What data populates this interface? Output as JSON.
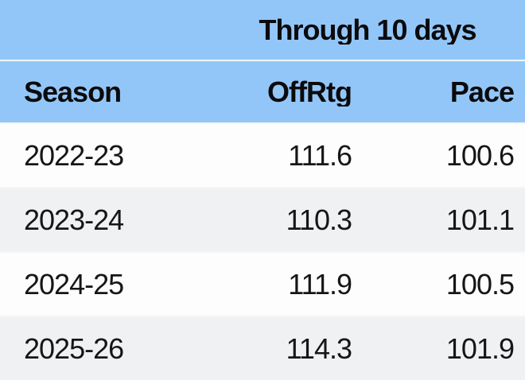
{
  "chart_data": {
    "type": "table",
    "title": "Through 10 days",
    "columns": [
      "Season",
      "OffRtg",
      "Pace"
    ],
    "rows": [
      [
        "2022-23",
        "111.6",
        "100.6"
      ],
      [
        "2023-24",
        "110.3",
        "101.1"
      ],
      [
        "2024-25",
        "111.9",
        "100.5"
      ],
      [
        "2025-26",
        "114.3",
        "101.9"
      ]
    ],
    "layout_hints": {
      "merged_header_spans": "OffRtg and Pace columns",
      "season_align": "left",
      "numeric_align": "right",
      "row_striping": "white / light-gray alternating"
    },
    "colors": {
      "header_bg": "#93C6F8",
      "header_divider": "#E4F0FC",
      "row_bg": "#FDFDFE",
      "row_alt_bg": "#F0F1F2",
      "text": "#161616",
      "header_text": "#0B0B0D"
    }
  }
}
